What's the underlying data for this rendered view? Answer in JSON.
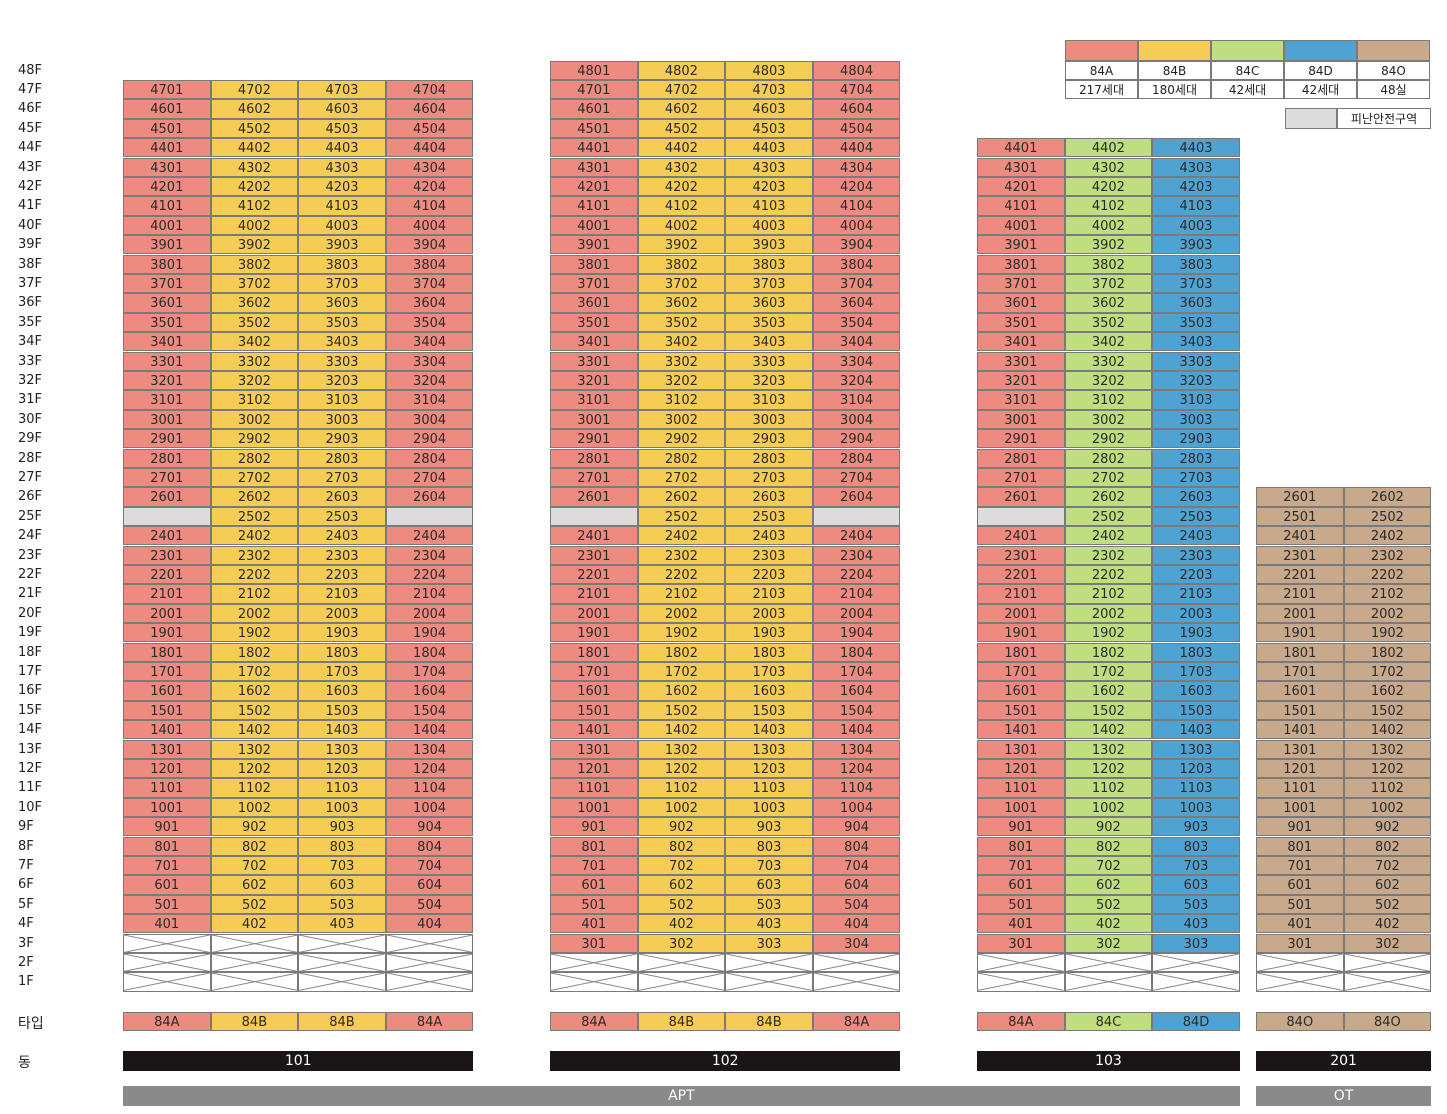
{
  "floors": [
    "48F",
    "47F",
    "46F",
    "45F",
    "44F",
    "43F",
    "42F",
    "41F",
    "40F",
    "39F",
    "38F",
    "37F",
    "36F",
    "35F",
    "34F",
    "33F",
    "32F",
    "31F",
    "30F",
    "29F",
    "28F",
    "27F",
    "26F",
    "25F",
    "24F",
    "23F",
    "22F",
    "21F",
    "20F",
    "19F",
    "18F",
    "17F",
    "16F",
    "15F",
    "14F",
    "13F",
    "12F",
    "11F",
    "10F",
    "9F",
    "8F",
    "7F",
    "6F",
    "5F",
    "4F",
    "3F",
    "2F",
    "1F"
  ],
  "colors": {
    "84A": "#ee8b80",
    "84B": "#f5cd55",
    "84C": "#bede7f",
    "84D": "#4ea3d3",
    "84O": "#c8a98c",
    "refuge": "#dcdcdc"
  },
  "legend": {
    "types": [
      {
        "type": "84A",
        "count": "217세대"
      },
      {
        "type": "84B",
        "count": "180세대"
      },
      {
        "type": "84C",
        "count": "42세대"
      },
      {
        "type": "84D",
        "count": "42세대"
      },
      {
        "type": "84O",
        "count": "48실"
      }
    ],
    "refuge_label": "피난안전구역"
  },
  "row_labels": {
    "type": "타입",
    "building": "동"
  },
  "buildings": [
    {
      "name": "101",
      "top_floor": 47,
      "lowest_floor": 4,
      "units": [
        "01",
        "02",
        "03",
        "04"
      ],
      "types": [
        "84A",
        "84B",
        "84B",
        "84A"
      ],
      "refuge_units": [
        "01",
        "04"
      ],
      "type_labels": [
        "84A",
        "84B",
        "84B",
        "84A"
      ]
    },
    {
      "name": "102",
      "top_floor": 48,
      "lowest_floor": 3,
      "units": [
        "01",
        "02",
        "03",
        "04"
      ],
      "types": [
        "84A",
        "84B",
        "84B",
        "84A"
      ],
      "refuge_units": [
        "01",
        "04"
      ],
      "type_labels": [
        "84A",
        "84B",
        "84B",
        "84A"
      ]
    },
    {
      "name": "103",
      "top_floor": 44,
      "lowest_floor": 3,
      "units": [
        "01",
        "02",
        "03"
      ],
      "types": [
        "84A",
        "84C",
        "84D"
      ],
      "refuge_units": [
        "01"
      ],
      "type_labels": [
        "84A",
        "84C",
        "84D"
      ]
    },
    {
      "name": "201",
      "top_floor": 26,
      "lowest_floor": 3,
      "units": [
        "01",
        "02"
      ],
      "types": [
        "84O",
        "84O"
      ],
      "refuge_units": [],
      "type_labels": [
        "84O",
        "84O"
      ]
    }
  ],
  "groups": [
    {
      "label": "APT"
    },
    {
      "label": "OT"
    }
  ]
}
